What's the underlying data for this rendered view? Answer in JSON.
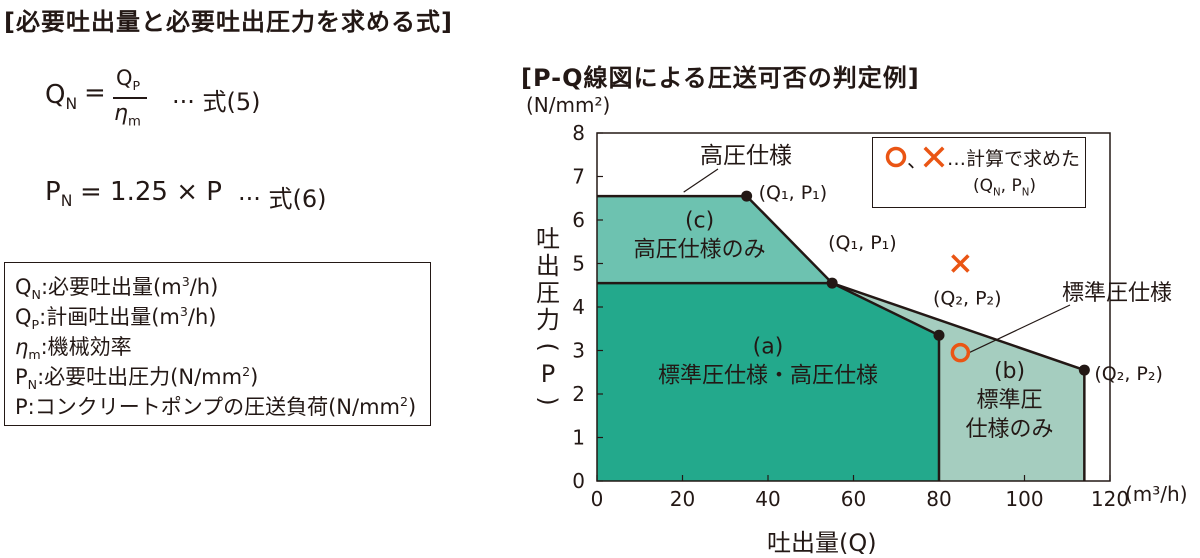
{
  "left_title": "[必要吐出量と必要吐出圧力を求める式]",
  "formula5": {
    "lhs_letter": "Q",
    "lhs_sub": "N",
    "eq": "=",
    "numerator_letter": "Q",
    "numerator_sub": "P",
    "denominator_letter": "η",
    "denominator_sub": "m",
    "label": "··· 式(5)"
  },
  "formula6": {
    "lhs_letter": "P",
    "lhs_sub": "N",
    "rhs": "= 1.25 × P",
    "label": "··· 式(6)"
  },
  "definitions": [
    {
      "sym": "Q",
      "sub": "N",
      "text": ":必要吐出量(m",
      "sup": "3",
      "tail": "/h)"
    },
    {
      "sym": "Q",
      "sub": "P",
      "text": ":計画吐出量(m",
      "sup": "3",
      "tail": "/h)"
    },
    {
      "sym": "η",
      "sub": "m",
      "text": ":機械効率",
      "sup": "",
      "tail": ""
    },
    {
      "sym": "P",
      "sub": "N",
      "text": ":必要吐出圧力(N/mm",
      "sup": "2",
      "tail": ")"
    },
    {
      "sym": "P",
      "sub": "",
      "text": ":コンクリートポンプの圧送負荷(N/mm",
      "sup": "2",
      "tail": ")"
    }
  ],
  "chart_title": "[P-Q線図による圧送可否の判定例]",
  "chart_data": {
    "type": "area",
    "y_unit": "(N/mm²)",
    "x_unit": "(m³/h)",
    "xlabel": "吐出量(Q)",
    "ylabel_chars": [
      "吐",
      "出",
      "圧",
      "力",
      "(",
      "P",
      ")"
    ],
    "xlim": [
      0,
      120
    ],
    "ylim": [
      0,
      8
    ],
    "x_ticks": [
      0,
      20,
      40,
      60,
      80,
      100,
      120
    ],
    "y_ticks": [
      0,
      1,
      2,
      3,
      4,
      5,
      6,
      7,
      8
    ],
    "regions": [
      {
        "name": "(a)",
        "label_lines": [
          "(a)",
          "標準圧仕様・高圧仕様"
        ],
        "color": "#23a98c",
        "points": [
          [
            0,
            0
          ],
          [
            0,
            4.55
          ],
          [
            55,
            4.55
          ],
          [
            80,
            3.35
          ],
          [
            80,
            0
          ]
        ],
        "label_at": [
          40,
          2.6
        ]
      },
      {
        "name": "(b)",
        "label_lines": [
          "(b)",
          "標準圧",
          "仕様のみ"
        ],
        "color": "#a5cdbf",
        "points": [
          [
            80,
            0
          ],
          [
            80,
            3.35
          ],
          [
            55,
            4.55
          ],
          [
            114,
            2.55
          ],
          [
            114,
            0
          ]
        ],
        "label_at": [
          96.5,
          1.7
        ]
      },
      {
        "name": "(c)",
        "label_lines": [
          "(c)",
          "高圧仕様のみ"
        ],
        "color": "#6dc2b0",
        "points": [
          [
            0,
            4.55
          ],
          [
            0,
            6.55
          ],
          [
            35,
            6.55
          ],
          [
            55,
            4.55
          ]
        ],
        "label_at": [
          24,
          5.5
        ]
      }
    ],
    "curves": [
      {
        "name": "高圧仕様",
        "points": [
          [
            0,
            6.55
          ],
          [
            35,
            6.55
          ],
          [
            55,
            4.55
          ],
          [
            80,
            3.35
          ],
          [
            80,
            0
          ]
        ]
      },
      {
        "name": "標準圧仕様",
        "points": [
          [
            0,
            4.55
          ],
          [
            55,
            4.55
          ],
          [
            114,
            2.55
          ],
          [
            114,
            0
          ]
        ]
      }
    ],
    "key_points": [
      {
        "x": 35,
        "y": 6.55,
        "label": "(Q₁, P₁)"
      },
      {
        "x": 55,
        "y": 4.55,
        "label": "(Q₁, P₁)"
      },
      {
        "x": 80,
        "y": 3.35,
        "label": "(Q₂, P₂)"
      },
      {
        "x": 114,
        "y": 2.55,
        "label": "(Q₂, P₂)"
      }
    ],
    "curve_labels": [
      {
        "text": "高圧仕様",
        "target": [
          17,
          6.55
        ]
      },
      {
        "text": "標準圧仕様",
        "target": [
          97,
          3.2
        ]
      }
    ],
    "markers": [
      {
        "shape": "x",
        "x": 85,
        "y": 5.0,
        "color": "#ea5514"
      },
      {
        "shape": "o",
        "x": 85,
        "y": 2.95,
        "color": "#ea5514"
      }
    ],
    "legend": {
      "position": "top-right",
      "line1": "…計算で求めた",
      "line2": "(Q",
      "line2_sub1": "N",
      "line2_mid": ", P",
      "line2_sub2": "N",
      "line2_end": ")",
      "separator": "、"
    }
  }
}
